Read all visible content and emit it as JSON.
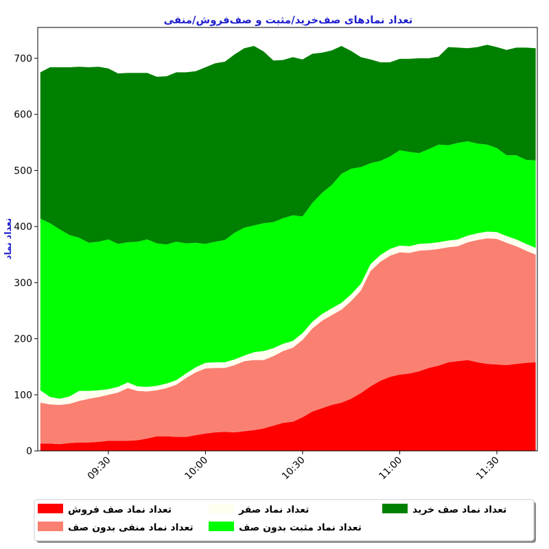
{
  "chart_data": {
    "type": "area",
    "stacked": true,
    "title": "تعداد نمادهای صف‌خرید/مثبت و صف‌فروش/منفی",
    "ylabel": "تعداد نماد",
    "xlabel": "",
    "ylim": [
      0,
      755
    ],
    "y_ticks": [
      0,
      100,
      200,
      300,
      400,
      500,
      600,
      700
    ],
    "x_ticks": [
      {
        "label": "09:30",
        "t": 30
      },
      {
        "label": "10:00",
        "t": 60
      },
      {
        "label": "10:30",
        "t": 90
      },
      {
        "label": "11:00",
        "t": 120
      },
      {
        "label": "11:30",
        "t": 150
      }
    ],
    "x_range": [
      8.2,
      162.5
    ],
    "x_minutes_after": "09:00",
    "x": [
      9,
      12,
      15,
      18,
      21,
      24,
      27,
      30,
      33,
      36,
      39,
      42,
      45,
      48,
      51,
      54,
      57,
      60,
      63,
      66,
      69,
      72,
      75,
      78,
      81,
      84,
      87,
      90,
      93,
      96,
      99,
      102,
      105,
      108,
      111,
      114,
      117,
      120,
      123,
      126,
      129,
      132,
      135,
      138,
      141,
      144,
      147,
      150,
      153,
      156,
      159,
      162
    ],
    "series": [
      {
        "name": "تعداد نماد صف فروش",
        "color": "#ff0000",
        "values": [
          13,
          13,
          12,
          14,
          15,
          15,
          16,
          18,
          18,
          18,
          19,
          22,
          26,
          26,
          25,
          25,
          28,
          31,
          33,
          34,
          33,
          35,
          37,
          40,
          45,
          50,
          52,
          60,
          70,
          76,
          82,
          86,
          93,
          103,
          115,
          125,
          132,
          136,
          138,
          142,
          148,
          152,
          158,
          160,
          162,
          158,
          155,
          154,
          153,
          155,
          157,
          158
        ]
      },
      {
        "name": "تعداد نماد منفی بدون صف",
        "color": "#fa8072",
        "values": [
          73,
          70,
          70,
          70,
          74,
          78,
          80,
          82,
          86,
          94,
          88,
          84,
          82,
          86,
          93,
          105,
          112,
          116,
          115,
          114,
          120,
          125,
          125,
          122,
          124,
          128,
          132,
          138,
          148,
          156,
          160,
          166,
          174,
          183,
          206,
          212,
          216,
          218,
          215,
          215,
          210,
          208,
          205,
          205,
          210,
          218,
          224,
          224,
          218,
          210,
          200,
          192
        ]
      },
      {
        "name": "تعداد نماد صفر",
        "color": "#fffff0",
        "values": [
          22,
          13,
          11,
          13,
          18,
          14,
          12,
          10,
          10,
          10,
          8,
          8,
          8,
          8,
          8,
          8,
          9,
          10,
          10,
          10,
          10,
          10,
          14,
          16,
          14,
          13,
          12,
          12,
          12,
          12,
          12,
          12,
          12,
          12,
          12,
          12,
          12,
          12,
          12,
          12,
          12,
          12,
          12,
          12,
          12,
          12,
          12,
          12,
          12,
          12,
          12,
          12
        ]
      },
      {
        "name": "تعداد نماد مثبت بدون صف",
        "color": "#00ff00",
        "values": [
          306,
          310,
          302,
          288,
          273,
          264,
          265,
          267,
          255,
          250,
          258,
          263,
          254,
          248,
          247,
          232,
          222,
          212,
          215,
          218,
          226,
          228,
          226,
          228,
          225,
          224,
          224,
          208,
          212,
          216,
          220,
          230,
          224,
          208,
          180,
          168,
          165,
          170,
          168,
          162,
          168,
          174,
          170,
          172,
          168,
          160,
          155,
          150,
          144,
          150,
          150,
          156
        ]
      },
      {
        "name": "تعداد نماد صف خرید",
        "color": "#008000",
        "values": [
          261,
          278,
          289,
          299,
          305,
          313,
          312,
          305,
          304,
          302,
          301,
          297,
          297,
          300,
          302,
          305,
          306,
          315,
          318,
          318,
          318,
          320,
          320,
          306,
          288,
          282,
          282,
          280,
          266,
          250,
          240,
          228,
          210,
          196,
          185,
          176,
          168,
          163,
          166,
          169,
          162,
          157,
          175,
          170,
          166,
          172,
          178,
          180,
          188,
          192,
          200,
          200
        ]
      }
    ],
    "legend": {
      "placement": "bottom",
      "columns": 3
    },
    "grid": false
  }
}
